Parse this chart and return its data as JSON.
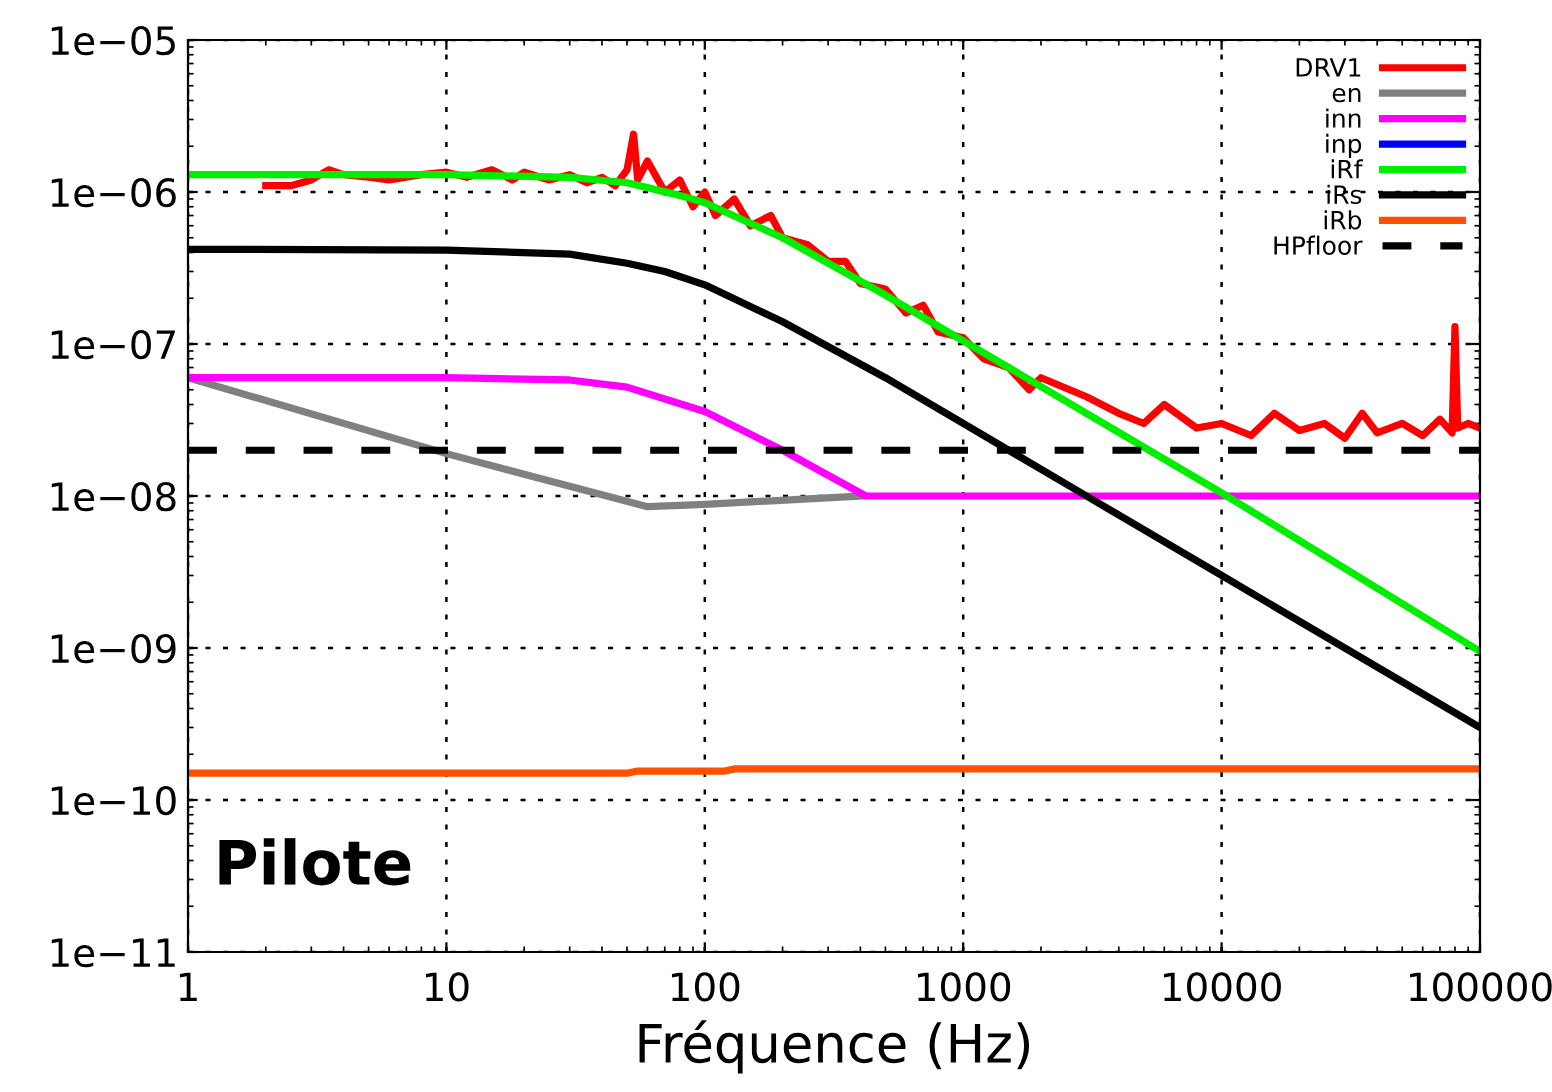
{
  "chart_data": {
    "type": "line",
    "xlabel": "Fréquence (Hz)",
    "log": "xy",
    "grid": true,
    "legend": "top right",
    "line_style": "solid",
    "marker": "none",
    "xlim": [
      1,
      100000
    ],
    "xticks": [
      1,
      10,
      100,
      1000,
      10000,
      100000
    ],
    "ylim": [
      1e-11,
      1e-05
    ],
    "yticks": [
      {
        "value": 1e-11,
        "label": "1e−11"
      },
      {
        "value": 1e-10,
        "label": "1e−10"
      },
      {
        "value": 1e-09,
        "label": "1e−09"
      },
      {
        "value": 1e-08,
        "label": "1e−08"
      },
      {
        "value": 1e-07,
        "label": "1e−07"
      },
      {
        "value": 1e-06,
        "label": "1e−06"
      },
      {
        "value": 1e-05,
        "label": "1e−05"
      }
    ],
    "annotations": [
      "Pilote"
    ],
    "series": [
      {
        "name": "DRV1",
        "color": "#ff0000",
        "x": [
          2,
          2.5,
          3,
          3.5,
          4,
          5,
          6,
          8,
          10,
          12,
          15,
          18,
          20,
          25,
          30,
          35,
          40,
          45,
          50,
          53,
          55,
          60,
          70,
          80,
          90,
          100,
          110,
          130,
          150,
          180,
          200,
          250,
          300,
          350,
          400,
          500,
          600,
          700,
          800,
          1000,
          1200,
          1500,
          1800,
          2000,
          3000,
          4000,
          5000,
          6000,
          8000,
          10000,
          13000,
          16000,
          20000,
          25000,
          30000,
          35000,
          40000,
          50000,
          60000,
          70000,
          78000,
          80000,
          82000,
          90000,
          100000
        ],
        "values": [
          1.1e-06,
          1.1e-06,
          1.2e-06,
          1.4e-06,
          1.3e-06,
          1.25e-06,
          1.2e-06,
          1.3e-06,
          1.35e-06,
          1.25e-06,
          1.4e-06,
          1.2e-06,
          1.35e-06,
          1.2e-06,
          1.3e-06,
          1.15e-06,
          1.25e-06,
          1.1e-06,
          1.4e-06,
          2.4e-06,
          1.2e-06,
          1.6e-06,
          1e-06,
          1.2e-06,
          8e-07,
          1e-06,
          7e-07,
          9e-07,
          6e-07,
          7e-07,
          5e-07,
          4.5e-07,
          3.5e-07,
          3.5e-07,
          2.5e-07,
          2.3e-07,
          1.6e-07,
          1.8e-07,
          1.2e-07,
          1.1e-07,
          8e-08,
          7e-08,
          5e-08,
          6e-08,
          4.5e-08,
          3.5e-08,
          3e-08,
          4e-08,
          2.8e-08,
          3e-08,
          2.5e-08,
          3.5e-08,
          2.7e-08,
          3e-08,
          2.4e-08,
          3.5e-08,
          2.6e-08,
          3e-08,
          2.5e-08,
          3.2e-08,
          2.6e-08,
          1.3e-07,
          2.8e-08,
          3e-08,
          2.8e-08
        ]
      },
      {
        "name": "en",
        "color": "#808080",
        "x": [
          1,
          10,
          60,
          100,
          400
        ],
        "values": [
          6e-08,
          1.9e-08,
          8.5e-09,
          8.8e-09,
          1e-08
        ]
      },
      {
        "name": "inn",
        "color": "#ff00ff",
        "x": [
          1,
          10,
          30,
          50,
          100,
          200,
          420,
          100000
        ],
        "values": [
          6e-08,
          6e-08,
          5.8e-08,
          5.2e-08,
          3.6e-08,
          2e-08,
          1e-08,
          1e-08
        ]
      },
      {
        "name": "inp",
        "color": "#0000ff"
      },
      {
        "name": "iRf",
        "color": "#00ee00",
        "x": [
          1,
          10,
          30,
          50,
          80,
          100,
          200,
          500,
          1000,
          3000,
          10000,
          100000
        ],
        "values": [
          1.3e-06,
          1.3e-06,
          1.25e-06,
          1.15e-06,
          9.5e-07,
          8.5e-07,
          5e-07,
          2.1e-07,
          1.05e-07,
          3.5e-08,
          1.05e-08,
          9.5e-10
        ]
      },
      {
        "name": "iRs",
        "color": "#000000",
        "x": [
          1,
          10,
          30,
          50,
          70,
          100,
          200,
          500,
          1000,
          3000,
          10000,
          100000
        ],
        "values": [
          4.2e-07,
          4.15e-07,
          3.9e-07,
          3.4e-07,
          3e-07,
          2.45e-07,
          1.4e-07,
          6e-08,
          3e-08,
          1e-08,
          3e-09,
          3e-10
        ]
      },
      {
        "name": "iRb",
        "color": "#ff5000",
        "x": [
          1,
          50,
          55,
          120,
          130,
          100000
        ],
        "values": [
          1.5e-10,
          1.5e-10,
          1.55e-10,
          1.55e-10,
          1.6e-10,
          1.6e-10
        ]
      },
      {
        "name": "HPfloor",
        "color": "#000000",
        "line_style": "dashed",
        "x": [
          1,
          100000
        ],
        "values": [
          2e-08,
          2e-08
        ]
      }
    ]
  }
}
